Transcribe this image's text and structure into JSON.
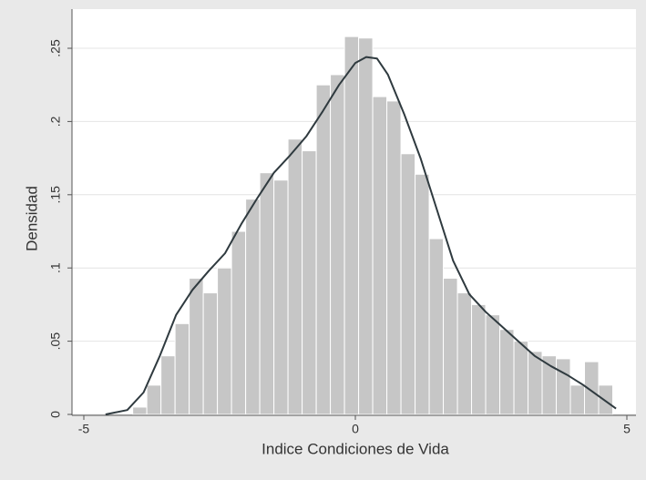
{
  "chart_data": {
    "type": "histogram",
    "xlabel": "Indice Condiciones de Vida",
    "ylabel": "Densidad",
    "bins": [
      -4.1,
      -3.84,
      -3.58,
      -3.32,
      -3.06,
      -2.8,
      -2.54,
      -2.28,
      -2.02,
      -1.76,
      -1.5,
      -1.24,
      -0.98,
      -0.72,
      -0.46,
      -0.2,
      0.06,
      0.32,
      0.58,
      0.84,
      1.1,
      1.36,
      1.62,
      1.88,
      2.14,
      2.4,
      2.66,
      2.92,
      3.18,
      3.44,
      3.7,
      3.96,
      4.22,
      4.48,
      4.74
    ],
    "values": [
      0.005,
      0.02,
      0.04,
      0.062,
      0.093,
      0.083,
      0.1,
      0.125,
      0.147,
      0.165,
      0.16,
      0.188,
      0.18,
      0.225,
      0.232,
      0.258,
      0.257,
      0.217,
      0.214,
      0.178,
      0.164,
      0.12,
      0.093,
      0.083,
      0.075,
      0.068,
      0.058,
      0.05,
      0.043,
      0.04,
      0.038,
      0.02,
      0.036,
      0.02
    ],
    "color": "#c6c6c6",
    "density": {
      "color": "#2f3a3f",
      "x": [
        -4.6,
        -4.2,
        -3.9,
        -3.6,
        -3.3,
        -3.0,
        -2.7,
        -2.4,
        -2.1,
        -1.8,
        -1.5,
        -1.2,
        -0.9,
        -0.6,
        -0.3,
        0,
        0.2,
        0.4,
        0.6,
        0.9,
        1.2,
        1.5,
        1.8,
        2.1,
        2.4,
        2.7,
        3.0,
        3.3,
        3.6,
        3.9,
        4.2,
        4.5,
        4.8
      ],
      "y": [
        0,
        0.003,
        0.015,
        0.04,
        0.068,
        0.085,
        0.098,
        0.11,
        0.13,
        0.148,
        0.165,
        0.177,
        0.19,
        0.207,
        0.225,
        0.24,
        0.244,
        0.243,
        0.232,
        0.205,
        0.175,
        0.14,
        0.105,
        0.082,
        0.07,
        0.06,
        0.05,
        0.04,
        0.033,
        0.027,
        0.02,
        0.012,
        0.004
      ]
    },
    "xlim": [
      -5,
      5
    ],
    "xticks": [
      -5,
      0,
      5
    ],
    "ylim": [
      0,
      0.25
    ],
    "yticks": [
      0,
      {
        "value": 0.05,
        "label": ".05"
      },
      {
        "value": 0.1,
        "label": ".1"
      },
      {
        "value": 0.15,
        "label": ".15"
      },
      {
        "value": 0.2,
        "label": ".2"
      },
      {
        "value": 0.25,
        "label": ".25"
      }
    ],
    "grid": true
  }
}
